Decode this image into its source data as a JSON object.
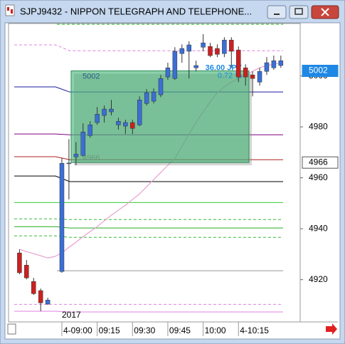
{
  "window": {
    "title": "SJPJ9432 - NIPPON TELEGRAPH AND TELEPHONE..."
  },
  "chart_data": {
    "type": "candlestick",
    "year_label": "2017",
    "categories": [
      null,
      null,
      null,
      null,
      null,
      null,
      "4-09:00",
      null,
      null,
      null,
      null,
      "09:15",
      null,
      null,
      null,
      null,
      "09:30",
      null,
      null,
      null,
      null,
      "09:45",
      null,
      null,
      null,
      null,
      "10:00",
      null,
      null,
      null,
      null,
      "4-10:15",
      null,
      null,
      null,
      null,
      null,
      null
    ],
    "open": [
      4930.5,
      4925.7,
      4919.3,
      4915.7,
      4910.4,
      null,
      4923.2,
      4965.7,
      4968.2,
      4968.8,
      4976.6,
      4981.7,
      4984.5,
      4985.9,
      4980.8,
      4980.3,
      4981.7,
      4980.8,
      4989.2,
      4990.1,
      4992.6,
      4999.6,
      4999.0,
      5008.8,
      5009.7,
      5003.2,
      5011.3,
      5011.6,
      5010.8,
      5008.8,
      5014.1,
      5010.2,
      5003.2,
      5000.4,
      4997.6,
      5001.8,
      5003.2,
      5004.1
    ],
    "high": [
      4931.9,
      4927.7,
      4920.7,
      4916.5,
      4912.9,
      null,
      4967.7,
      4975.2,
      4974.0,
      4981.4,
      4982.2,
      4987.8,
      4988.4,
      4990.6,
      4983.6,
      4982.8,
      4982.8,
      4992.0,
      4994.8,
      4995.1,
      5000.4,
      5005.2,
      5011.3,
      5012.4,
      5013.6,
      5006.0,
      5016.4,
      5013.0,
      5012.4,
      5015.2,
      5015.2,
      5011.6,
      5004.6,
      5001.8,
      5003.2,
      5007.4,
      5008.0,
      5008.0
    ],
    "low": [
      4922.1,
      4920.1,
      4914.0,
      4907.6,
      4910.1,
      null,
      4922.7,
      4951.5,
      4964.9,
      4968.3,
      4975.8,
      4980.8,
      4981.7,
      4984.5,
      4978.9,
      4977.2,
      4977.2,
      4980.3,
      4988.4,
      4989.2,
      4991.7,
      4998.5,
      4998.5,
      5005.2,
      4999.0,
      5001.8,
      5009.7,
      5007.4,
      5007.4,
      5007.4,
      5003.2,
      4997.6,
      4996.2,
      4992.0,
      4996.2,
      5000.4,
      5002.4,
      5003.2
    ],
    "close": [
      4922.7,
      4920.7,
      4914.5,
      4910.9,
      4912.0,
      null,
      4965.7,
      4965.8,
      4969.3,
      4978.0,
      4980.8,
      4985.0,
      4987.0,
      4987.0,
      4982.2,
      4981.7,
      4979.4,
      4990.6,
      4993.4,
      4993.7,
      4999.0,
      5003.2,
      5009.7,
      5010.8,
      5012.2,
      5004.1,
      5013.0,
      5008.0,
      5008.5,
      5014.1,
      5009.7,
      4999.6,
      4999.6,
      4999.0,
      5001.8,
      5005.2,
      5006.0,
      5006.0
    ],
    "up_color": "#3b6fd6",
    "down_color": "#cc2020",
    "ma": {
      "color": "#e8a0d0",
      "values": [
        4931.9,
        4931.0,
        4930.2,
        4929.4,
        4928.5,
        4929.1,
        4930.5,
        4932.7,
        4934.7,
        4936.9,
        4938.9,
        4940.8,
        4943.1,
        4945.3,
        4947.3,
        4949.2,
        4951.5,
        4953.7,
        4956.5,
        4959.3,
        4962.1,
        4964.9,
        4967.7,
        4972.4,
        4977.2,
        4981.7,
        4985.9,
        4989.8,
        4993.4,
        4995.7,
        4997.6,
        4999.0,
        5000.4,
        5001.8,
        5003.2,
        5004.1,
        5004.6,
        5005.2
      ]
    },
    "levels": [
      {
        "color": "#33cc33",
        "dashed": true,
        "values": [
          null,
          5020.3
        ]
      },
      {
        "color": "#e080e0",
        "dashed": true,
        "values": [
          5012.2,
          5009.9
        ]
      },
      {
        "color": "#1a1aa0",
        "dashed": false,
        "values": [
          4995.7,
          4993.7
        ]
      },
      {
        "color": "#800080",
        "dashed": false,
        "values": [
          4977.2,
          4976.9
        ]
      },
      {
        "color": "#b02020",
        "dashed": false,
        "values": [
          4968.3,
          4967.1
        ]
      },
      {
        "color": "#000000",
        "dashed": false,
        "values": [
          4960.7,
          4958.5
        ]
      },
      {
        "color": "#33cc33",
        "dashed": false,
        "values": [
          4950.3,
          4950.3
        ]
      },
      {
        "color": "#33bb33",
        "dashed": true,
        "values": [
          4943.9,
          4943.6
        ]
      },
      {
        "color": "#22aa22",
        "dashed": false,
        "values": [
          4940.8,
          4940.3
        ]
      },
      {
        "color": "#33bb33",
        "dashed": true,
        "values": [
          4937.2,
          4936.6
        ]
      },
      {
        "color": "#999999",
        "dashed": false,
        "values": [
          null,
          4923.5
        ]
      },
      {
        "color": "#e080e0",
        "dashed": true,
        "values": [
          4910.3,
          4910.3
        ]
      },
      {
        "color": "#e080e0",
        "dashed": false,
        "values": [
          4907.6,
          4907.3
        ]
      }
    ],
    "measure_box": {
      "top": 5002,
      "bottom": 4966,
      "change_label": "36.00 JPY",
      "pct_label": "0.72 %",
      "color": "#3cb371"
    },
    "price_markers": [
      {
        "value": 5002,
        "color": "#1e88e5"
      },
      {
        "value": 4966,
        "color": "#ffffff"
      }
    ],
    "ylim": [
      4903.4,
      5020.6
    ],
    "yticks": [
      4920,
      4940,
      4960,
      4980,
      5000
    ]
  }
}
